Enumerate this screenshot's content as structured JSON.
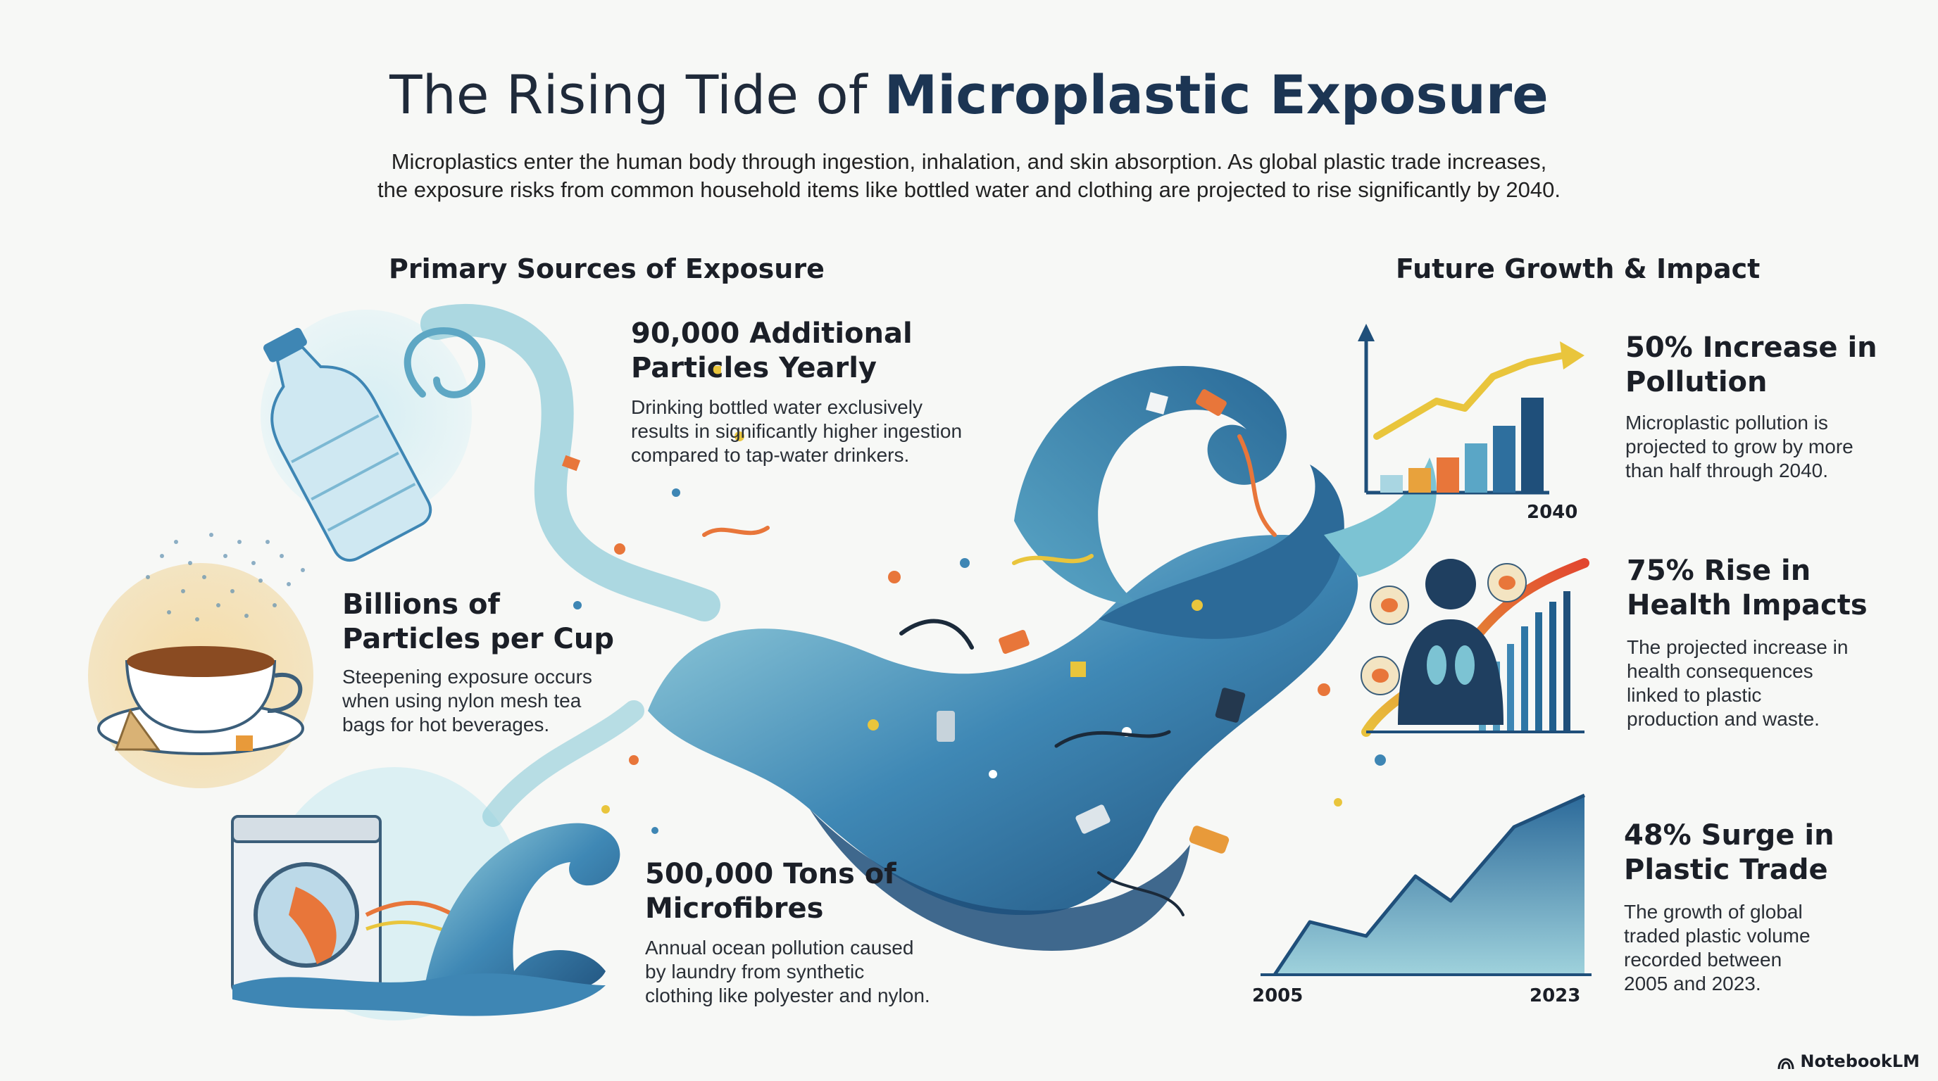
{
  "header": {
    "title_light": "The Rising Tide of ",
    "title_bold": "Microplastic Exposure",
    "subtitle_line1": "Microplastics enter the human body through ingestion, inhalation, and skin absorption. As global plastic trade increases,",
    "subtitle_line2": "the exposure risks from common household items like bottled water and clothing are projected to rise significantly by 2040."
  },
  "sources": {
    "heading": "Primary Sources of Exposure",
    "items": [
      {
        "icon": "water-bottle-icon",
        "title_line1": "90,000 Additional",
        "title_line2": "Particles Yearly",
        "body_line1": "Drinking bottled water exclusively",
        "body_line2": "results in significantly higher ingestion",
        "body_line3": "compared to tap-water drinkers."
      },
      {
        "icon": "tea-cup-icon",
        "title_line1": "Billions of",
        "title_line2": "Particles per Cup",
        "body_line1": "Steepening exposure occurs",
        "body_line2": "when using nylon mesh tea",
        "body_line3": "bags for hot beverages."
      },
      {
        "icon": "washing-machine-icon",
        "title_line1": "500,000 Tons of",
        "title_line2": "Microfibres",
        "body_line1": "Annual ocean pollution caused",
        "body_line2": "by laundry from synthetic",
        "body_line3": "clothing like polyester and nylon."
      }
    ]
  },
  "future": {
    "heading": "Future Growth & Impact",
    "items": [
      {
        "icon": "growth-chart-icon",
        "axis_label": "2040",
        "title_line1": "50% Increase in",
        "title_line2": "Pollution",
        "body_line1": "Microplastic pollution is",
        "body_line2": "projected to grow by more",
        "body_line3": "than half through 2040."
      },
      {
        "icon": "human-health-icon",
        "title_line1": "75% Rise in",
        "title_line2": "Health Impacts",
        "body_line1": "The projected increase in",
        "body_line2": "health consequences",
        "body_line3": "linked to plastic",
        "body_line4": "production and waste."
      },
      {
        "icon": "trade-area-chart-icon",
        "axis_start": "2005",
        "axis_end": "2023",
        "title_line1": "48% Surge in",
        "title_line2": "Plastic Trade",
        "body_line1": "The growth of global",
        "body_line2": "traded plastic volume",
        "body_line3": "recorded between",
        "body_line4": "2005 and 2023."
      }
    ]
  },
  "brand": {
    "label": "NotebookLM",
    "icon": "notebooklm-logo-icon"
  },
  "colors": {
    "deep_blue": "#1f4f7a",
    "mid_blue": "#3e86b4",
    "light_teal": "#8ccbd8",
    "orange": "#e8763a",
    "yellow": "#e9c53c"
  }
}
